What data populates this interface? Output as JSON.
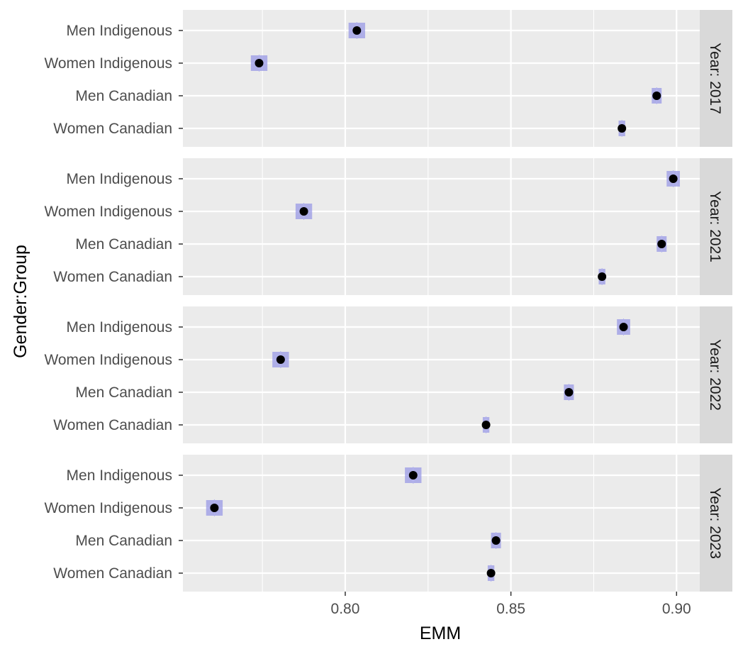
{
  "chart_data": {
    "type": "scatter",
    "xlabel": "EMM",
    "ylabel": "Gender:Group",
    "xlim": [
      0.751,
      0.907
    ],
    "x_ticks": [
      0.8,
      0.85,
      0.9
    ],
    "x_tick_labels": [
      "0.80",
      "0.85",
      "0.90"
    ],
    "categories": [
      "Men Indigenous",
      "Women Indigenous",
      "Men Canadian",
      "Women Canadian"
    ],
    "grid": true,
    "facets": [
      {
        "label": "Year: 2017",
        "points": [
          {
            "category": "Men Indigenous",
            "emm": 0.8035,
            "lower": 0.801,
            "upper": 0.806
          },
          {
            "category": "Women Indigenous",
            "emm": 0.774,
            "lower": 0.7715,
            "upper": 0.7765
          },
          {
            "category": "Men Canadian",
            "emm": 0.894,
            "lower": 0.8925,
            "upper": 0.8955
          },
          {
            "category": "Women Canadian",
            "emm": 0.8835,
            "lower": 0.8825,
            "upper": 0.8845
          }
        ]
      },
      {
        "label": "Year: 2021",
        "points": [
          {
            "category": "Men Indigenous",
            "emm": 0.899,
            "lower": 0.897,
            "upper": 0.901
          },
          {
            "category": "Women Indigenous",
            "emm": 0.7875,
            "lower": 0.785,
            "upper": 0.79
          },
          {
            "category": "Men Canadian",
            "emm": 0.8955,
            "lower": 0.894,
            "upper": 0.897
          },
          {
            "category": "Women Canadian",
            "emm": 0.8775,
            "lower": 0.8765,
            "upper": 0.8785
          }
        ]
      },
      {
        "label": "Year: 2022",
        "points": [
          {
            "category": "Men Indigenous",
            "emm": 0.884,
            "lower": 0.882,
            "upper": 0.886
          },
          {
            "category": "Women Indigenous",
            "emm": 0.7805,
            "lower": 0.778,
            "upper": 0.783
          },
          {
            "category": "Men Canadian",
            "emm": 0.8675,
            "lower": 0.866,
            "upper": 0.869
          },
          {
            "category": "Women Canadian",
            "emm": 0.8425,
            "lower": 0.8415,
            "upper": 0.8435
          }
        ]
      },
      {
        "label": "Year: 2023",
        "points": [
          {
            "category": "Men Indigenous",
            "emm": 0.8205,
            "lower": 0.818,
            "upper": 0.823
          },
          {
            "category": "Women Indigenous",
            "emm": 0.7605,
            "lower": 0.758,
            "upper": 0.763
          },
          {
            "category": "Men Canadian",
            "emm": 0.8455,
            "lower": 0.844,
            "upper": 0.847
          },
          {
            "category": "Women Canadian",
            "emm": 0.844,
            "lower": 0.843,
            "upper": 0.845
          }
        ]
      }
    ],
    "colors": {
      "panel_background": "#ebebeb",
      "grid": "#ffffff",
      "strip_background": "#d9d9d9",
      "ci_band": "#9999e6",
      "ci_line": "#b3b3ee",
      "point": "#000000",
      "tick_text": "#4d4d4d"
    }
  }
}
